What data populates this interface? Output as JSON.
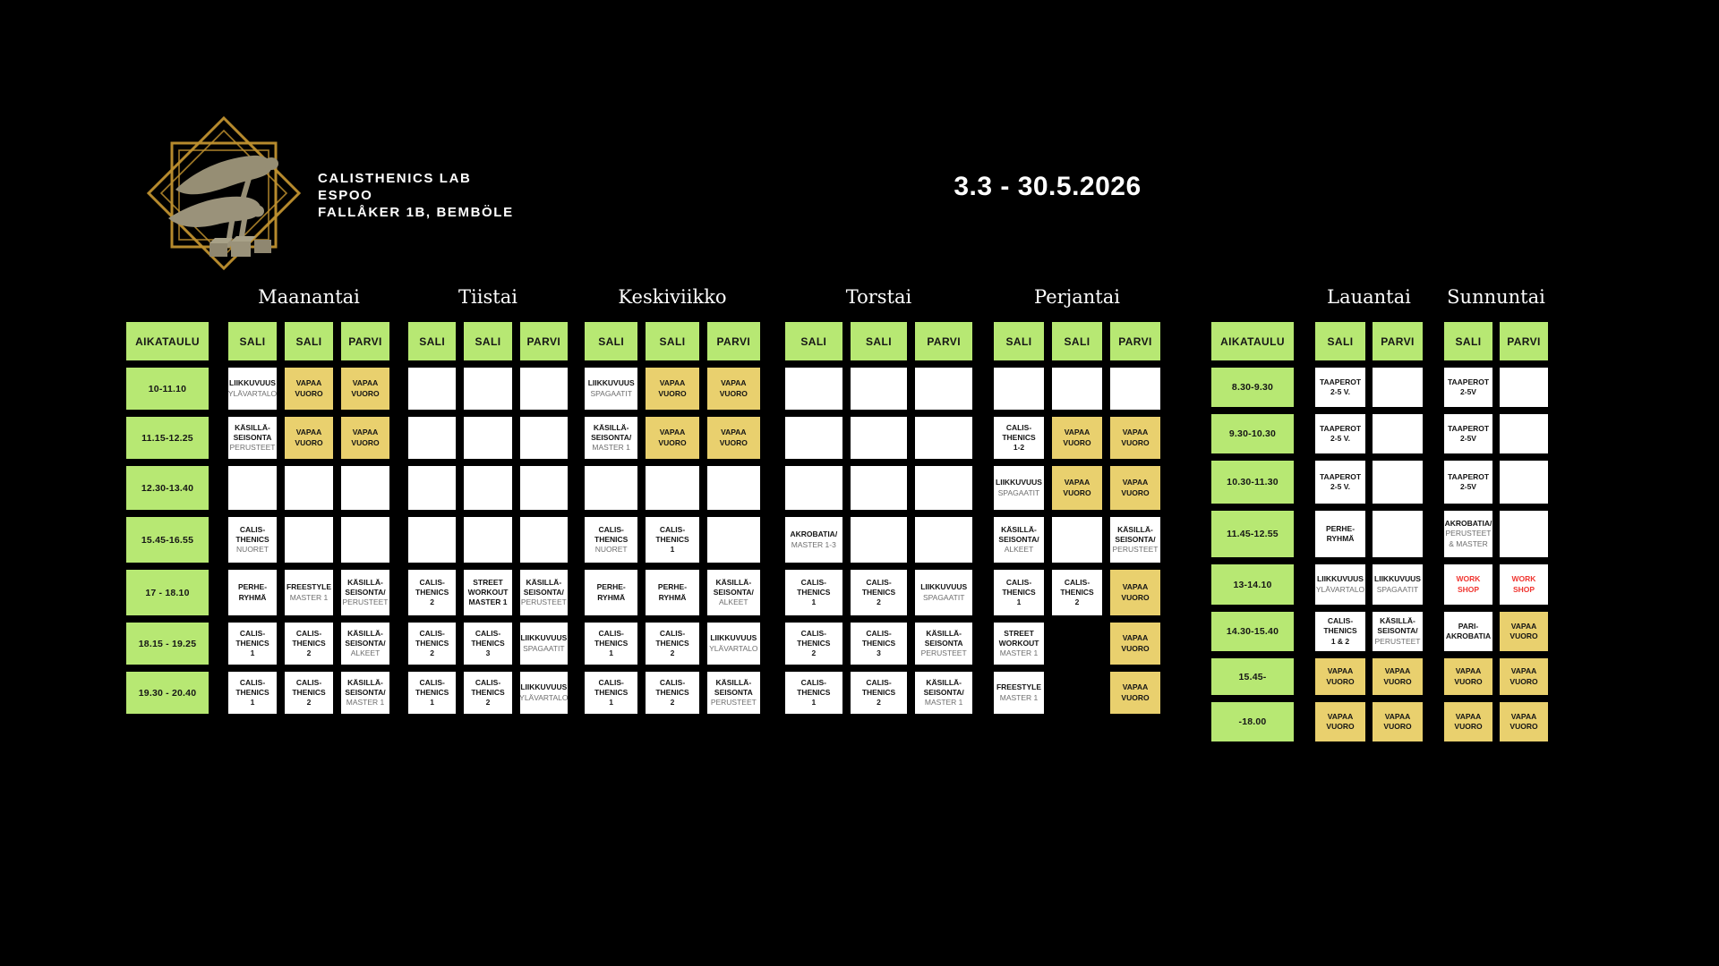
{
  "brand": {
    "logo": "two-acrobats-in-gold-diamond-frame",
    "title_lines": [
      "CALISTHENICS LAB",
      "ESPOO",
      "FALLÅKER 1B, BEMBÖLE"
    ],
    "date_range": "3.3 - 30.5.2026"
  },
  "colors": {
    "background": "#000000",
    "green": "#b7e873",
    "yellow": "#e9d06e",
    "red": "#f03530",
    "muted_text": "#6e6e6e"
  },
  "schedule": {
    "time_header": "AIKATAULU",
    "free_slot_label": [
      "VAPAA",
      "VUORO"
    ],
    "weekday": {
      "times": [
        "10-11.10",
        "11.15-12.25",
        "12.30-13.40",
        "15.45-16.55",
        "17 - 18.10",
        "18.15 - 19.25",
        "19.30 - 20.40"
      ],
      "days": [
        {
          "name": "Maanantai",
          "columns": [
            "SALI",
            "SALI",
            "PARVI"
          ],
          "rows": [
            [
              {
                "main": [
                  "LIIKKUVUUS"
                ],
                "sub": [
                  "YLÄVARTALO"
                ]
              },
              {
                "main": [
                  "VAPAA",
                  "VUORO"
                ],
                "bg": "yellow"
              },
              {
                "main": [
                  "VAPAA",
                  "VUORO"
                ],
                "bg": "yellow"
              }
            ],
            [
              {
                "main": [
                  "KÄSILLÄ-",
                  "SEISONTA"
                ],
                "sub": [
                  "PERUSTEET"
                ]
              },
              {
                "main": [
                  "VAPAA",
                  "VUORO"
                ],
                "bg": "yellow"
              },
              {
                "main": [
                  "VAPAA",
                  "VUORO"
                ],
                "bg": "yellow"
              }
            ],
            [
              {},
              {},
              {}
            ],
            [
              {
                "main": [
                  "CALIS-",
                  "THENICS"
                ],
                "sub": [
                  "NUORET"
                ]
              },
              {},
              {}
            ],
            [
              {
                "main": [
                  "PERHE-",
                  "RYHMÄ"
                ]
              },
              {
                "main": [
                  "FREESTYLE"
                ],
                "sub": [
                  "MASTER 1"
                ]
              },
              {
                "main": [
                  "KÄSILLÄ-",
                  "SEISONTA/"
                ],
                "sub": [
                  "PERUSTEET"
                ]
              }
            ],
            [
              {
                "main": [
                  "CALIS-",
                  "THENICS",
                  "1"
                ]
              },
              {
                "main": [
                  "CALIS-",
                  "THENICS",
                  "2"
                ]
              },
              {
                "main": [
                  "KÄSILLÄ-",
                  "SEISONTA/"
                ],
                "sub": [
                  "ALKEET"
                ]
              }
            ],
            [
              {
                "main": [
                  "CALIS-",
                  "THENICS",
                  "1"
                ]
              },
              {
                "main": [
                  "CALIS-",
                  "THENICS",
                  "2"
                ]
              },
              {
                "main": [
                  "KÄSILLÄ-",
                  "SEISONTA/"
                ],
                "sub": [
                  "MASTER 1"
                ]
              }
            ]
          ]
        },
        {
          "name": "Tiistai",
          "columns": [
            "SALI",
            "SALI",
            "PARVI"
          ],
          "rows": [
            [
              {},
              {},
              {}
            ],
            [
              {},
              {},
              {}
            ],
            [
              {},
              {},
              {}
            ],
            [
              {},
              {},
              {}
            ],
            [
              {
                "main": [
                  "CALIS-",
                  "THENICS",
                  "2"
                ]
              },
              {
                "main": [
                  "STREET",
                  "WORKOUT",
                  "MASTER 1"
                ]
              },
              {
                "main": [
                  "KÄSILLÄ-",
                  "SEISONTA/"
                ],
                "sub": [
                  "PERUSTEET"
                ]
              }
            ],
            [
              {
                "main": [
                  "CALIS-",
                  "THENICS",
                  "2"
                ]
              },
              {
                "main": [
                  "CALIS-",
                  "THENICS",
                  "3"
                ]
              },
              {
                "main": [
                  "LIIKKUVUUS"
                ],
                "sub": [
                  "SPAGAATIT"
                ]
              }
            ],
            [
              {
                "main": [
                  "CALIS-",
                  "THENICS",
                  "1"
                ]
              },
              {
                "main": [
                  "CALIS-",
                  "THENICS",
                  "2"
                ]
              },
              {
                "main": [
                  "LIIKKUVUUS"
                ],
                "sub": [
                  "YLÄVARTALO"
                ]
              }
            ]
          ]
        },
        {
          "name": "Keskiviikko",
          "columns": [
            "SALI",
            "SALI",
            "PARVI"
          ],
          "rows": [
            [
              {
                "main": [
                  "LIIKKUVUUS"
                ],
                "sub": [
                  "SPAGAATIT"
                ]
              },
              {
                "main": [
                  "VAPAA",
                  "VUORO"
                ],
                "bg": "yellow"
              },
              {
                "main": [
                  "VAPAA",
                  "VUORO"
                ],
                "bg": "yellow"
              }
            ],
            [
              {
                "main": [
                  "KÄSILLÄ-",
                  "SEISONTA/"
                ],
                "sub": [
                  "MASTER 1"
                ]
              },
              {
                "main": [
                  "VAPAA",
                  "VUORO"
                ],
                "bg": "yellow"
              },
              {
                "main": [
                  "VAPAA",
                  "VUORO"
                ],
                "bg": "yellow"
              }
            ],
            [
              {},
              {},
              {}
            ],
            [
              {
                "main": [
                  "CALIS-",
                  "THENICS"
                ],
                "sub": [
                  "NUORET"
                ]
              },
              {
                "main": [
                  "CALIS-",
                  "THENICS",
                  "1"
                ]
              },
              {}
            ],
            [
              {
                "main": [
                  "PERHE-",
                  "RYHMÄ"
                ]
              },
              {
                "main": [
                  "PERHE-",
                  "RYHMÄ"
                ]
              },
              {
                "main": [
                  "KÄSILLÄ-",
                  "SEISONTA/"
                ],
                "sub": [
                  "ALKEET"
                ]
              }
            ],
            [
              {
                "main": [
                  "CALIS-",
                  "THENICS",
                  "1"
                ]
              },
              {
                "main": [
                  "CALIS-",
                  "THENICS",
                  "2"
                ]
              },
              {
                "main": [
                  "LIIKKUVUUS"
                ],
                "sub": [
                  "YLÄVARTALO"
                ]
              }
            ],
            [
              {
                "main": [
                  "CALIS-",
                  "THENICS",
                  "1"
                ]
              },
              {
                "main": [
                  "CALIS-",
                  "THENICS",
                  "2"
                ]
              },
              {
                "main": [
                  "KÄSILLÄ-",
                  "SEISONTA"
                ],
                "sub": [
                  "PERUSTEET"
                ]
              }
            ]
          ]
        },
        {
          "name": "Torstai",
          "columns": [
            "SALI",
            "SALI",
            "PARVI"
          ],
          "rows": [
            [
              {},
              {},
              {}
            ],
            [
              {},
              {},
              {}
            ],
            [
              {},
              {},
              {}
            ],
            [
              {
                "main": [
                  "AKROBATIA/"
                ],
                "sub": [
                  "MASTER 1-3"
                ]
              },
              {},
              {}
            ],
            [
              {
                "main": [
                  "CALIS-",
                  "THENICS",
                  "1"
                ]
              },
              {
                "main": [
                  "CALIS-",
                  "THENICS",
                  "2"
                ]
              },
              {
                "main": [
                  "LIIKKUVUUS"
                ],
                "sub": [
                  "SPAGAATIT"
                ]
              }
            ],
            [
              {
                "main": [
                  "CALIS-",
                  "THENICS",
                  "2"
                ]
              },
              {
                "main": [
                  "CALIS-",
                  "THENICS",
                  "3"
                ]
              },
              {
                "main": [
                  "KÄSILLÄ-",
                  "SEISONTA"
                ],
                "sub": [
                  "PERUSTEET"
                ]
              }
            ],
            [
              {
                "main": [
                  "CALIS-",
                  "THENICS",
                  "1"
                ]
              },
              {
                "main": [
                  "CALIS-",
                  "THENICS",
                  "2"
                ]
              },
              {
                "main": [
                  "KÄSILLÄ-",
                  "SEISONTA/"
                ],
                "sub": [
                  "MASTER 1"
                ]
              }
            ]
          ]
        },
        {
          "name": "Perjantai",
          "columns": [
            "SALI",
            "SALI",
            "PARVI"
          ],
          "rows": [
            [
              {},
              {},
              {}
            ],
            [
              {
                "main": [
                  "CALIS-",
                  "THENICS",
                  "1-2"
                ]
              },
              {
                "main": [
                  "VAPAA",
                  "VUORO"
                ],
                "bg": "yellow"
              },
              {
                "main": [
                  "VAPAA",
                  "VUORO"
                ],
                "bg": "yellow"
              }
            ],
            [
              {
                "main": [
                  "LIIKKUVUUS"
                ],
                "sub": [
                  "SPAGAATIT"
                ]
              },
              {
                "main": [
                  "VAPAA",
                  "VUORO"
                ],
                "bg": "yellow"
              },
              {
                "main": [
                  "VAPAA",
                  "VUORO"
                ],
                "bg": "yellow"
              }
            ],
            [
              {
                "main": [
                  "KÄSILLÄ-",
                  "SEISONTA/"
                ],
                "sub": [
                  "ALKEET"
                ]
              },
              {},
              {
                "main": [
                  "KÄSILLÄ-",
                  "SEISONTA/"
                ],
                "sub": [
                  "PERUSTEET"
                ]
              }
            ],
            [
              {
                "main": [
                  "CALIS-",
                  "THENICS",
                  "1"
                ]
              },
              {
                "main": [
                  "CALIS-",
                  "THENICS",
                  "2"
                ]
              },
              {
                "main": [
                  "VAPAA",
                  "VUORO"
                ],
                "bg": "yellow"
              }
            ],
            [
              {
                "main": [
                  "STREET",
                  "WORKOUT"
                ],
                "sub": [
                  "MASTER 1"
                ]
              },
              null,
              {
                "main": [
                  "VAPAA",
                  "VUORO"
                ],
                "bg": "yellow"
              }
            ],
            [
              {
                "main": [
                  "FREESTYLE"
                ],
                "sub": [
                  "MASTER 1"
                ]
              },
              null,
              {
                "main": [
                  "VAPAA",
                  "VUORO"
                ],
                "bg": "yellow"
              }
            ]
          ]
        }
      ]
    },
    "weekend": {
      "times": [
        "8.30-9.30",
        "9.30-10.30",
        "10.30-11.30",
        "11.45-12.55",
        "13-14.10",
        "14.30-15.40",
        "15.45-",
        "-18.00"
      ],
      "days": [
        {
          "name": "Lauantai",
          "columns": [
            "SALI",
            "PARVI"
          ],
          "rows": [
            [
              {
                "main": [
                  "TAAPEROT",
                  "2-5 V."
                ]
              },
              {}
            ],
            [
              {
                "main": [
                  "TAAPEROT",
                  "2-5 V."
                ]
              },
              {}
            ],
            [
              {
                "main": [
                  "TAAPEROT",
                  "2-5 V."
                ]
              },
              {}
            ],
            [
              {
                "main": [
                  "PERHE-",
                  "RYHMÄ"
                ]
              },
              {}
            ],
            [
              {
                "main": [
                  "LIIKKUVUUS"
                ],
                "sub": [
                  "YLÄVARTALO"
                ]
              },
              {
                "main": [
                  "LIIKKUVUUS"
                ],
                "sub": [
                  "SPAGAATIT"
                ]
              }
            ],
            [
              {
                "main": [
                  "CALIS-",
                  "THENICS",
                  "1 & 2"
                ]
              },
              {
                "main": [
                  "KÄSILLÄ-",
                  "SEISONTA/"
                ],
                "sub": [
                  "PERUSTEET"
                ]
              }
            ],
            [
              {
                "main": [
                  "VAPAA",
                  "VUORO"
                ],
                "bg": "yellow"
              },
              {
                "main": [
                  "VAPAA",
                  "VUORO"
                ],
                "bg": "yellow"
              }
            ],
            [
              {
                "main": [
                  "VAPAA",
                  "VUORO"
                ],
                "bg": "yellow"
              },
              {
                "main": [
                  "VAPAA",
                  "VUORO"
                ],
                "bg": "yellow"
              }
            ]
          ]
        },
        {
          "name": "Sunnuntai",
          "columns": [
            "SALI",
            "PARVI"
          ],
          "rows": [
            [
              {
                "main": [
                  "TAAPEROT",
                  "2-5V"
                ]
              },
              {}
            ],
            [
              {
                "main": [
                  "TAAPEROT",
                  "2-5V"
                ]
              },
              {}
            ],
            [
              {
                "main": [
                  "TAAPEROT",
                  "2-5V"
                ]
              },
              {}
            ],
            [
              {
                "main": [
                  "AKROBATIA/"
                ],
                "sub": [
                  "PERUSTEET",
                  "& MASTER"
                ]
              },
              {}
            ],
            [
              {
                "main": [
                  "WORK",
                  "SHOP"
                ],
                "color": "red"
              },
              {
                "main": [
                  "WORK",
                  "SHOP"
                ],
                "color": "red"
              }
            ],
            [
              {
                "main": [
                  "PARI-",
                  "AKROBATIA"
                ]
              },
              {
                "main": [
                  "VAPAA",
                  "VUORO"
                ],
                "bg": "yellow"
              }
            ],
            [
              {
                "main": [
                  "VAPAA",
                  "VUORO"
                ],
                "bg": "yellow"
              },
              {
                "main": [
                  "VAPAA",
                  "VUORO"
                ],
                "bg": "yellow"
              }
            ],
            [
              {
                "main": [
                  "VAPAA",
                  "VUORO"
                ],
                "bg": "yellow"
              },
              {
                "main": [
                  "VAPAA",
                  "VUORO"
                ],
                "bg": "yellow"
              }
            ]
          ]
        }
      ]
    }
  }
}
